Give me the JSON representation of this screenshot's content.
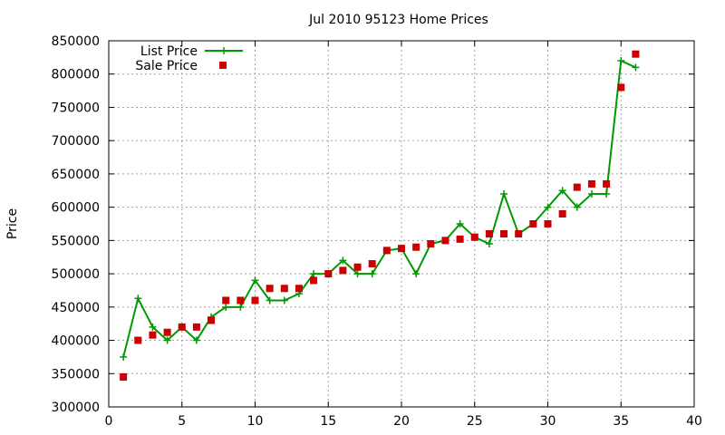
{
  "chart_data": {
    "type": "line",
    "title": "Jul 2010 95123 Home Prices",
    "xlabel": "",
    "ylabel": "Price",
    "xlim": [
      0,
      40
    ],
    "ylim": [
      300000,
      850000
    ],
    "x_ticks": [
      0,
      5,
      10,
      15,
      20,
      25,
      30,
      35,
      40
    ],
    "y_ticks": [
      300000,
      350000,
      400000,
      450000,
      500000,
      550000,
      600000,
      650000,
      700000,
      750000,
      800000,
      850000
    ],
    "grid": true,
    "legend_position": "top-left",
    "series": [
      {
        "name": "List Price",
        "style": "line-with-plus-markers",
        "color": "#009900",
        "x": [
          1,
          2,
          3,
          4,
          5,
          6,
          7,
          8,
          9,
          10,
          11,
          12,
          13,
          14,
          15,
          16,
          17,
          18,
          19,
          20,
          21,
          22,
          23,
          24,
          25,
          26,
          27,
          28,
          29,
          30,
          31,
          32,
          33,
          34,
          35,
          36
        ],
        "values": [
          375000,
          463000,
          420000,
          400000,
          420000,
          400000,
          435000,
          450000,
          450000,
          490000,
          460000,
          460000,
          470000,
          500000,
          500000,
          520000,
          500000,
          500000,
          535000,
          538000,
          500000,
          545000,
          550000,
          575000,
          555000,
          545000,
          620000,
          560000,
          575000,
          600000,
          625000,
          600000,
          620000,
          620000,
          820000,
          810000
        ]
      },
      {
        "name": "Sale Price",
        "style": "square-markers",
        "color": "#cc0000",
        "x": [
          1,
          2,
          3,
          4,
          5,
          6,
          7,
          8,
          9,
          10,
          11,
          12,
          13,
          14,
          15,
          16,
          17,
          18,
          19,
          20,
          21,
          22,
          23,
          24,
          25,
          26,
          27,
          28,
          29,
          30,
          31,
          32,
          33,
          34,
          35,
          36
        ],
        "values": [
          345000,
          400000,
          408000,
          412000,
          420000,
          420000,
          430000,
          460000,
          460000,
          460000,
          478000,
          478000,
          478000,
          490000,
          500000,
          505000,
          510000,
          515000,
          535000,
          538000,
          540000,
          545000,
          550000,
          552000,
          555000,
          560000,
          560000,
          560000,
          575000,
          575000,
          590000,
          630000,
          635000,
          635000,
          780000,
          830000
        ]
      }
    ]
  }
}
